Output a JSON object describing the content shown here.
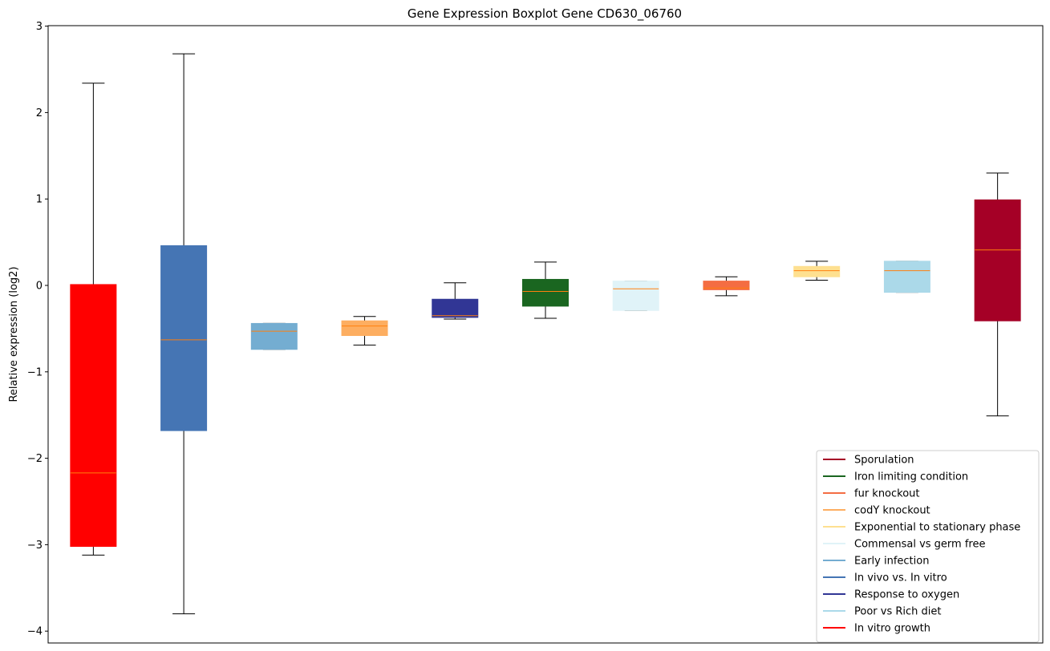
{
  "chart_data": {
    "type": "box",
    "title": "Gene Expression Boxplot Gene CD630_06760",
    "xlabel": "",
    "ylabel": "Relative expression (log2)",
    "ylim": [
      -4.1,
      3.0
    ],
    "yticks": [
      -4,
      -3,
      -2,
      -1,
      0,
      1,
      2,
      3
    ],
    "ytick_labels": [
      "−4",
      "−3",
      "−2",
      "−1",
      "0",
      "1",
      "2",
      "3"
    ],
    "grid": false,
    "legend_position": "lower-right",
    "median_color": "#ff7f0e",
    "boxes": [
      {
        "name": "In vitro growth",
        "color": "#ff0000",
        "whislo": -3.12,
        "q1": -3.02,
        "med": -2.17,
        "q3": 0.01,
        "whishi": 2.34
      },
      {
        "name": "In vivo vs. In vitro",
        "color": "#4575b4",
        "whislo": -3.8,
        "q1": -1.68,
        "med": -0.63,
        "q3": 0.46,
        "whishi": 2.68
      },
      {
        "name": "Early infection",
        "color": "#74add1",
        "whislo": -0.74,
        "q1": -0.74,
        "med": -0.53,
        "q3": -0.44,
        "whishi": -0.44
      },
      {
        "name": "codY knockout",
        "color": "#fdae61",
        "whislo": -0.69,
        "q1": -0.58,
        "med": -0.47,
        "q3": -0.41,
        "whishi": -0.36
      },
      {
        "name": "Response to oxygen",
        "color": "#313695",
        "whislo": -0.39,
        "q1": -0.37,
        "med": -0.35,
        "q3": -0.16,
        "whishi": 0.03
      },
      {
        "name": "Iron limiting condition",
        "color": "#1a6620",
        "whislo": -0.38,
        "q1": -0.24,
        "med": -0.07,
        "q3": 0.07,
        "whishi": 0.27
      },
      {
        "name": "Commensal vs germ free",
        "color": "#e0f3f8",
        "whislo": -0.29,
        "q1": -0.29,
        "med": -0.04,
        "q3": 0.05,
        "whishi": 0.05
      },
      {
        "name": "fur knockout",
        "color": "#f46d43",
        "whislo": -0.12,
        "q1": -0.05,
        "med": -0.03,
        "q3": 0.05,
        "whishi": 0.1
      },
      {
        "name": "Exponential to stationary phase",
        "color": "#fee090",
        "whislo": 0.06,
        "q1": 0.1,
        "med": 0.17,
        "q3": 0.22,
        "whishi": 0.28
      },
      {
        "name": "Poor vs Rich diet",
        "color": "#abd9e9",
        "whislo": -0.08,
        "q1": -0.08,
        "med": 0.17,
        "q3": 0.28,
        "whishi": 0.28
      },
      {
        "name": "Sporulation",
        "color": "#a50026",
        "whislo": -1.51,
        "q1": -0.41,
        "med": 0.41,
        "q3": 0.99,
        "whishi": 1.3
      }
    ],
    "legend": [
      {
        "label": "Sporulation",
        "color": "#a50026"
      },
      {
        "label": "Iron limiting condition",
        "color": "#1a6620"
      },
      {
        "label": "fur knockout",
        "color": "#f46d43"
      },
      {
        "label": "codY knockout",
        "color": "#fdae61"
      },
      {
        "label": "Exponential to stationary phase",
        "color": "#fee090"
      },
      {
        "label": "Commensal vs germ free",
        "color": "#e0f3f8"
      },
      {
        "label": "Early infection",
        "color": "#74add1"
      },
      {
        "label": "In vivo vs. In vitro",
        "color": "#4575b4"
      },
      {
        "label": "Response to oxygen",
        "color": "#313695"
      },
      {
        "label": "Poor vs Rich diet",
        "color": "#abd9e9"
      },
      {
        "label": "In vitro growth",
        "color": "#ff0000"
      }
    ]
  }
}
